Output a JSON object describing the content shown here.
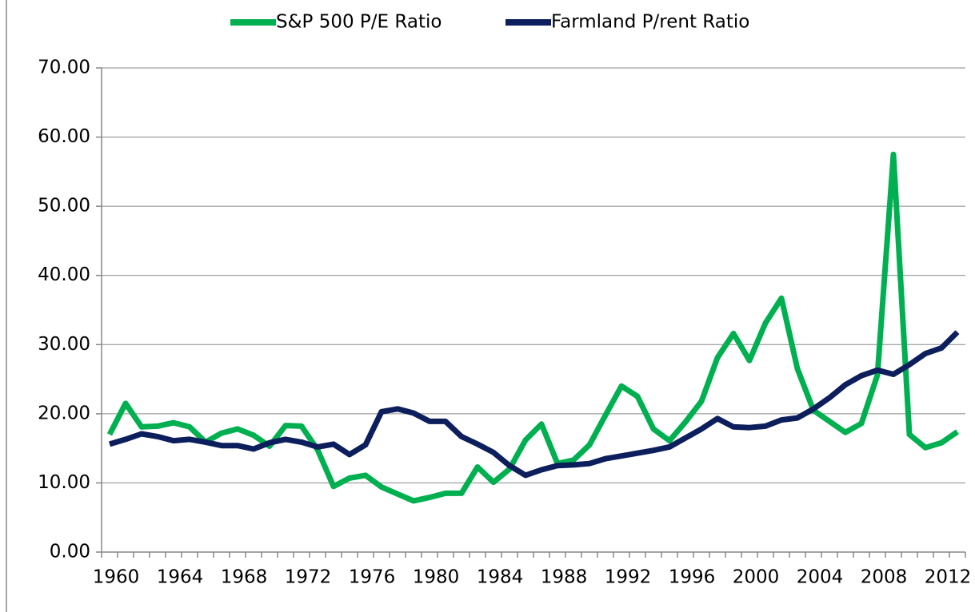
{
  "chart_data": {
    "type": "line",
    "categories": [
      "1960",
      null,
      null,
      null,
      "1964",
      null,
      null,
      null,
      "1968",
      null,
      null,
      null,
      "1972",
      null,
      null,
      null,
      "1976",
      null,
      null,
      null,
      "1980",
      null,
      null,
      null,
      "1984",
      null,
      null,
      null,
      "1988",
      null,
      null,
      null,
      "1992",
      null,
      null,
      null,
      "1996",
      null,
      null,
      null,
      "2000",
      null,
      null,
      null,
      "2004",
      null,
      null,
      null,
      "2008",
      null,
      null,
      null,
      "2012",
      null
    ],
    "series": [
      {
        "name": "S&P 500 P/E Ratio",
        "color": "#00b050",
        "values": [
          17.0,
          21.5,
          18.1,
          18.2,
          18.7,
          18.1,
          15.9,
          17.2,
          17.8,
          16.9,
          15.3,
          18.3,
          18.2,
          14.8,
          9.5,
          10.7,
          11.1,
          9.4,
          8.4,
          7.4,
          7.9,
          8.5,
          8.5,
          12.3,
          10.1,
          12.0,
          16.2,
          18.5,
          12.8,
          13.3,
          15.5,
          19.8,
          24.0,
          22.5,
          17.8,
          16.1,
          18.8,
          21.8,
          28.1,
          31.6,
          27.7,
          33.1,
          36.7,
          26.5,
          20.5,
          18.9,
          17.3,
          18.6,
          25.6,
          57.5,
          17.0,
          15.1,
          15.8,
          17.4
        ]
      },
      {
        "name": "Farmland P/rent Ratio",
        "color": "#0c1f5c",
        "values": [
          15.6,
          16.3,
          17.1,
          16.7,
          16.1,
          16.3,
          15.9,
          15.4,
          15.4,
          14.9,
          15.8,
          16.3,
          15.9,
          15.2,
          15.6,
          14.1,
          15.5,
          20.3,
          20.7,
          20.1,
          18.9,
          18.9,
          16.7,
          15.6,
          14.4,
          12.5,
          11.1,
          11.9,
          12.5,
          12.6,
          12.8,
          13.5,
          13.9,
          14.3,
          14.7,
          15.2,
          16.5,
          17.8,
          19.3,
          18.1,
          18.0,
          18.2,
          19.1,
          19.4,
          20.7,
          22.3,
          24.2,
          25.5,
          26.3,
          25.7,
          27.1,
          28.7,
          29.5,
          31.8
        ]
      }
    ],
    "ylim": [
      0,
      70
    ],
    "yticks": [
      {
        "value": 0,
        "label": "0.00"
      },
      {
        "value": 10,
        "label": "10.00"
      },
      {
        "value": 20,
        "label": "20.00"
      },
      {
        "value": 30,
        "label": "30.00"
      },
      {
        "value": 40,
        "label": "40.00"
      },
      {
        "value": 50,
        "label": "50.00"
      },
      {
        "value": 60,
        "label": "60.00"
      },
      {
        "value": 70,
        "label": "70.00"
      }
    ],
    "grid": true,
    "legend": "top"
  }
}
